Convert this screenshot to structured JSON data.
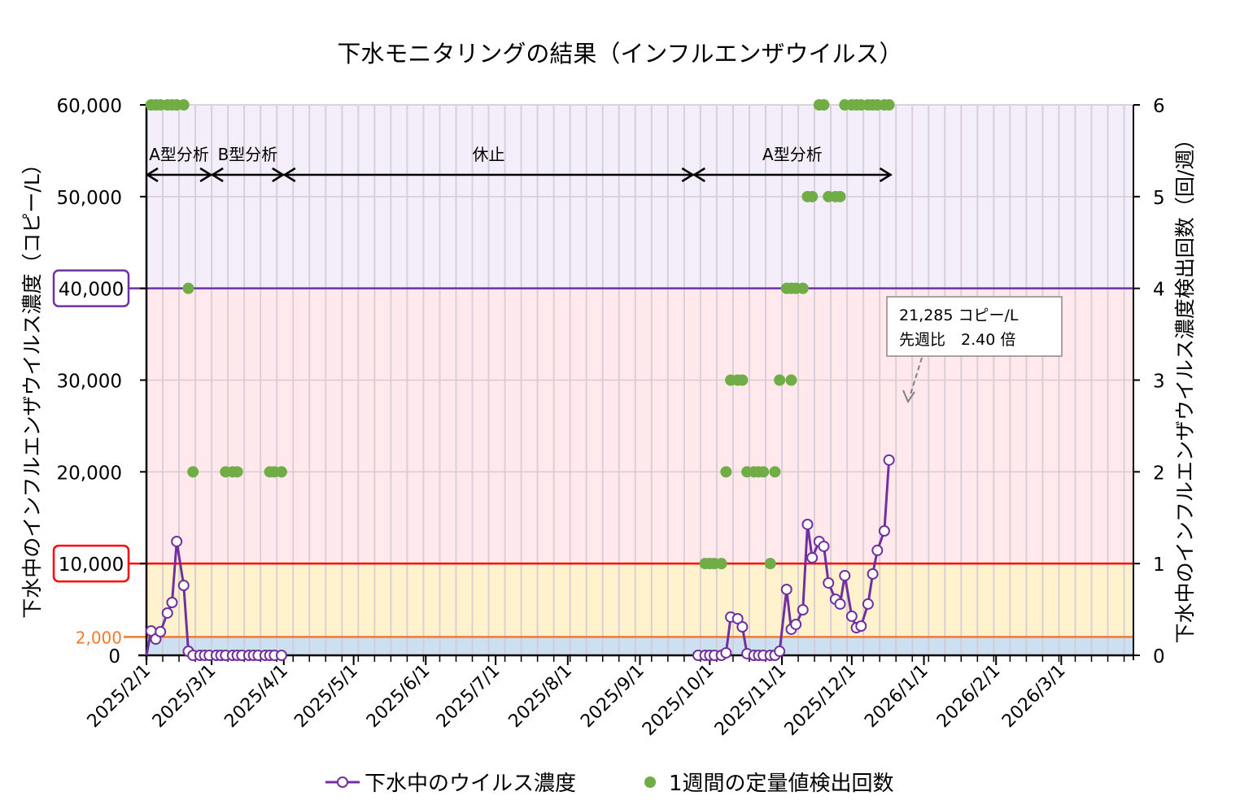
{
  "chart_data": {
    "type": "line",
    "title": "下水モニタリングの結果（インフルエンザウイルス）",
    "ylabel": "下水中のインフルエンザウイルス濃度（コピー/L）",
    "y2label": "下水中のインフルエンザウイルス濃度検出回数（回/週）",
    "xlim": [
      "2025-02-01",
      "2026-03-31"
    ],
    "ylim": [
      0,
      60000
    ],
    "y2lim": [
      0,
      6
    ],
    "x_ticks": [
      {
        "date": "2025-02-01",
        "label": "2025/2/1"
      },
      {
        "date": "2025-03-01",
        "label": "2025/3/1"
      },
      {
        "date": "2025-04-01",
        "label": "2025/4/1"
      },
      {
        "date": "2025-05-01",
        "label": "2025/5/1"
      },
      {
        "date": "2025-06-01",
        "label": "2025/6/1"
      },
      {
        "date": "2025-07-01",
        "label": "2025/7/1"
      },
      {
        "date": "2025-08-01",
        "label": "2025/8/1"
      },
      {
        "date": "2025-09-01",
        "label": "2025/9/1"
      },
      {
        "date": "2025-10-01",
        "label": "2025/10/1"
      },
      {
        "date": "2025-11-01",
        "label": "2025/11/1"
      },
      {
        "date": "2025-12-01",
        "label": "2025/12/1"
      },
      {
        "date": "2026-01-01",
        "label": "2026/1/1"
      },
      {
        "date": "2026-02-01",
        "label": "2026/2/1"
      },
      {
        "date": "2026-03-01",
        "label": "2026/3/1"
      }
    ],
    "y_ticks": [
      {
        "value": 0,
        "label": "0"
      },
      {
        "value": 20000,
        "label": "20,000"
      },
      {
        "value": 30000,
        "label": "30,000"
      },
      {
        "value": 50000,
        "label": "50,000"
      },
      {
        "value": 60000,
        "label": "60,000"
      }
    ],
    "y2_ticks": [
      "0",
      "1",
      "2",
      "3",
      "4",
      "5",
      "6"
    ],
    "thresholds": [
      {
        "value": 40000,
        "label": "40,000",
        "color": "#7030a0",
        "boxed": true
      },
      {
        "value": 10000,
        "label": "10,000",
        "color": "#ff0000",
        "boxed": true
      },
      {
        "value": 2000,
        "label": "2,000",
        "color": "#ed7d31",
        "boxed": false
      }
    ],
    "bands": [
      {
        "from": 0,
        "to": 2000,
        "color": "#cde0f1"
      },
      {
        "from": 2000,
        "to": 10000,
        "color": "#fff2cc"
      },
      {
        "from": 10000,
        "to": 40000,
        "color": "#ffe9ec"
      },
      {
        "from": 40000,
        "to": 60000,
        "color": "#f3eef9"
      }
    ],
    "grid": "weekly vertical",
    "legend_placement": "bottom",
    "series": [
      {
        "name": "下水中のウイルス濃度",
        "axis": "left",
        "color": "#7030a0",
        "segments": [
          [
            [
              "2025-02-01",
              0
            ],
            [
              "2025-02-03",
              2660
            ],
            [
              "2025-02-05",
              1770
            ],
            [
              "2025-02-07",
              2570
            ],
            [
              "2025-02-10",
              4610
            ],
            [
              "2025-02-12",
              5760
            ],
            [
              "2025-02-14",
              12410
            ],
            [
              "2025-02-17",
              7620
            ],
            [
              "2025-02-19",
              440
            ],
            [
              "2025-02-21",
              0
            ],
            [
              "2025-02-24",
              0
            ],
            [
              "2025-02-26",
              0
            ],
            [
              "2025-02-28",
              0
            ],
            [
              "2025-03-03",
              0
            ],
            [
              "2025-03-05",
              0
            ],
            [
              "2025-03-07",
              0
            ],
            [
              "2025-03-10",
              0
            ],
            [
              "2025-03-12",
              0
            ],
            [
              "2025-03-14",
              0
            ],
            [
              "2025-03-17",
              0
            ],
            [
              "2025-03-19",
              0
            ],
            [
              "2025-03-21",
              0
            ],
            [
              "2025-03-24",
              0
            ],
            [
              "2025-03-26",
              0
            ],
            [
              "2025-03-28",
              0
            ],
            [
              "2025-03-31",
              0
            ]
          ],
          [
            [
              "2025-09-26",
              0
            ],
            [
              "2025-09-29",
              0
            ],
            [
              "2025-10-01",
              0
            ],
            [
              "2025-10-03",
              0
            ],
            [
              "2025-10-06",
              0
            ],
            [
              "2025-10-08",
              270
            ],
            [
              "2025-10-10",
              4170
            ],
            [
              "2025-10-13",
              3990
            ],
            [
              "2025-10-15",
              3100
            ],
            [
              "2025-10-17",
              180
            ],
            [
              "2025-10-20",
              0
            ],
            [
              "2025-10-22",
              0
            ],
            [
              "2025-10-24",
              0
            ],
            [
              "2025-10-27",
              0
            ],
            [
              "2025-10-29",
              0
            ],
            [
              "2025-10-31",
              440
            ],
            [
              "2025-11-03",
              7180
            ],
            [
              "2025-11-05",
              2840
            ],
            [
              "2025-11-07",
              3370
            ],
            [
              "2025-11-10",
              4960
            ],
            [
              "2025-11-12",
              14270
            ],
            [
              "2025-11-14",
              10640
            ],
            [
              "2025-11-17",
              12410
            ],
            [
              "2025-11-19",
              11880
            ],
            [
              "2025-11-21",
              7890
            ],
            [
              "2025-11-24",
              6120
            ],
            [
              "2025-11-26",
              5590
            ],
            [
              "2025-11-28",
              8690
            ],
            [
              "2025-12-01",
              4260
            ],
            [
              "2025-12-03",
              3010
            ],
            [
              "2025-12-05",
              3190
            ],
            [
              "2025-12-08",
              5590
            ],
            [
              "2025-12-10",
              8870
            ],
            [
              "2025-12-12",
              11440
            ],
            [
              "2025-12-15",
              13560
            ],
            [
              "2025-12-17",
              21285
            ]
          ]
        ]
      },
      {
        "name": "1週間の定量値検出回数",
        "axis": "right",
        "color": "#70ad47",
        "points": [
          [
            "2025-02-03",
            6
          ],
          [
            "2025-02-05",
            6
          ],
          [
            "2025-02-07",
            6
          ],
          [
            "2025-02-10",
            6
          ],
          [
            "2025-02-12",
            6
          ],
          [
            "2025-02-14",
            6
          ],
          [
            "2025-02-17",
            6
          ],
          [
            "2025-02-19",
            4
          ],
          [
            "2025-02-21",
            2
          ],
          [
            "2025-03-07",
            2
          ],
          [
            "2025-03-10",
            2
          ],
          [
            "2025-03-12",
            2
          ],
          [
            "2025-03-26",
            2
          ],
          [
            "2025-03-28",
            2
          ],
          [
            "2025-03-31",
            2
          ],
          [
            "2025-09-29",
            1
          ],
          [
            "2025-10-01",
            1
          ],
          [
            "2025-10-03",
            1
          ],
          [
            "2025-10-06",
            1
          ],
          [
            "2025-10-08",
            2
          ],
          [
            "2025-10-10",
            3
          ],
          [
            "2025-10-13",
            3
          ],
          [
            "2025-10-15",
            3
          ],
          [
            "2025-10-17",
            2
          ],
          [
            "2025-10-20",
            2
          ],
          [
            "2025-10-22",
            2
          ],
          [
            "2025-10-24",
            2
          ],
          [
            "2025-10-27",
            1
          ],
          [
            "2025-10-29",
            2
          ],
          [
            "2025-10-31",
            3
          ],
          [
            "2025-11-03",
            4
          ],
          [
            "2025-11-05",
            3
          ],
          [
            "2025-11-05",
            4
          ],
          [
            "2025-11-07",
            4
          ],
          [
            "2025-11-10",
            4
          ],
          [
            "2025-11-12",
            5
          ],
          [
            "2025-11-14",
            5
          ],
          [
            "2025-11-17",
            6
          ],
          [
            "2025-11-19",
            6
          ],
          [
            "2025-11-21",
            5
          ],
          [
            "2025-11-24",
            5
          ],
          [
            "2025-11-26",
            5
          ],
          [
            "2025-11-28",
            6
          ],
          [
            "2025-12-01",
            6
          ],
          [
            "2025-12-03",
            6
          ],
          [
            "2025-12-05",
            6
          ],
          [
            "2025-12-08",
            6
          ],
          [
            "2025-12-10",
            6
          ],
          [
            "2025-12-12",
            6
          ],
          [
            "2025-12-15",
            6
          ],
          [
            "2025-12-17",
            6
          ]
        ]
      }
    ],
    "periods": [
      {
        "label": "A型分析",
        "from": "2025-02-01",
        "to": "2025-03-01"
      },
      {
        "label": "B型分析",
        "from": "2025-03-01",
        "to": "2025-04-01"
      },
      {
        "label": "休止",
        "from": "2025-04-01",
        "to": "2025-09-24"
      },
      {
        "label": "A型分析",
        "from": "2025-09-24",
        "to": "2025-12-18"
      }
    ],
    "callout": {
      "line1": "21,285 コピー/L",
      "line2": "先週比　2.40 倍",
      "date": "2025-12-17"
    },
    "legend": [
      "下水中のウイルス濃度",
      "1週間の定量値検出回数"
    ]
  }
}
